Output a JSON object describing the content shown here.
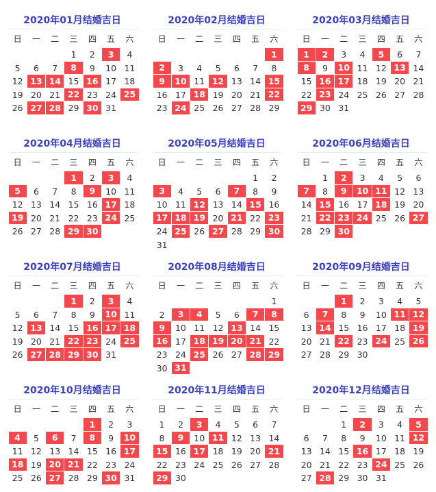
{
  "weekdays": [
    "日",
    "一",
    "二",
    "三",
    "四",
    "五",
    "六"
  ],
  "colors": {
    "title": "#3b3fc4",
    "lucky_bg": "#f5474c",
    "lucky_text": "#ffffff"
  },
  "months": [
    {
      "title": "2020年01月结婚吉日",
      "first_weekday": 3,
      "days": 31,
      "lucky": [
        3,
        8,
        13,
        14,
        16,
        22,
        25,
        27,
        28,
        30
      ]
    },
    {
      "title": "2020年02月结婚吉日",
      "first_weekday": 6,
      "days": 29,
      "lucky": [
        1,
        2,
        9,
        10,
        12,
        15,
        18,
        22,
        24
      ]
    },
    {
      "title": "2020年03月结婚吉日",
      "first_weekday": 0,
      "days": 31,
      "lucky": [
        1,
        2,
        5,
        8,
        10,
        13,
        16,
        17,
        23,
        29
      ]
    },
    {
      "title": "2020年04月结婚吉日",
      "first_weekday": 3,
      "days": 30,
      "lucky": [
        1,
        3,
        5,
        9,
        17,
        19,
        24,
        29,
        30
      ]
    },
    {
      "title": "2020年05月结婚吉日",
      "first_weekday": 5,
      "days": 31,
      "lucky": [
        3,
        7,
        12,
        15,
        17,
        18,
        19,
        21,
        23,
        25,
        27,
        30
      ]
    },
    {
      "title": "2020年06月结婚吉日",
      "first_weekday": 1,
      "days": 30,
      "lucky": [
        2,
        7,
        9,
        10,
        11,
        15,
        18,
        22,
        23,
        24,
        27,
        30
      ]
    },
    {
      "title": "2020年07月结婚吉日",
      "first_weekday": 3,
      "days": 31,
      "lucky": [
        1,
        3,
        10,
        13,
        16,
        17,
        18,
        22,
        23,
        25,
        27,
        28,
        29,
        30
      ]
    },
    {
      "title": "2020年08月结婚吉日",
      "first_weekday": 6,
      "days": 31,
      "lucky": [
        3,
        4,
        7,
        8,
        9,
        13,
        16,
        18,
        19,
        20,
        21,
        25,
        28,
        29,
        31
      ]
    },
    {
      "title": "2020年09月结婚吉日",
      "first_weekday": 2,
      "days": 30,
      "lucky": [
        1,
        7,
        11,
        12,
        14,
        19,
        22,
        24,
        26
      ]
    },
    {
      "title": "2020年10月结婚吉日",
      "first_weekday": 4,
      "days": 31,
      "lucky": [
        1,
        4,
        6,
        8,
        10,
        17,
        18,
        20,
        21,
        27,
        30
      ]
    },
    {
      "title": "2020年11月结婚吉日",
      "first_weekday": 0,
      "days": 30,
      "lucky": [
        3,
        9,
        11,
        15,
        17,
        21,
        29
      ]
    },
    {
      "title": "2020年12月结婚吉日",
      "first_weekday": 2,
      "days": 31,
      "lucky": [
        2,
        5,
        12,
        16,
        24,
        28
      ]
    }
  ]
}
